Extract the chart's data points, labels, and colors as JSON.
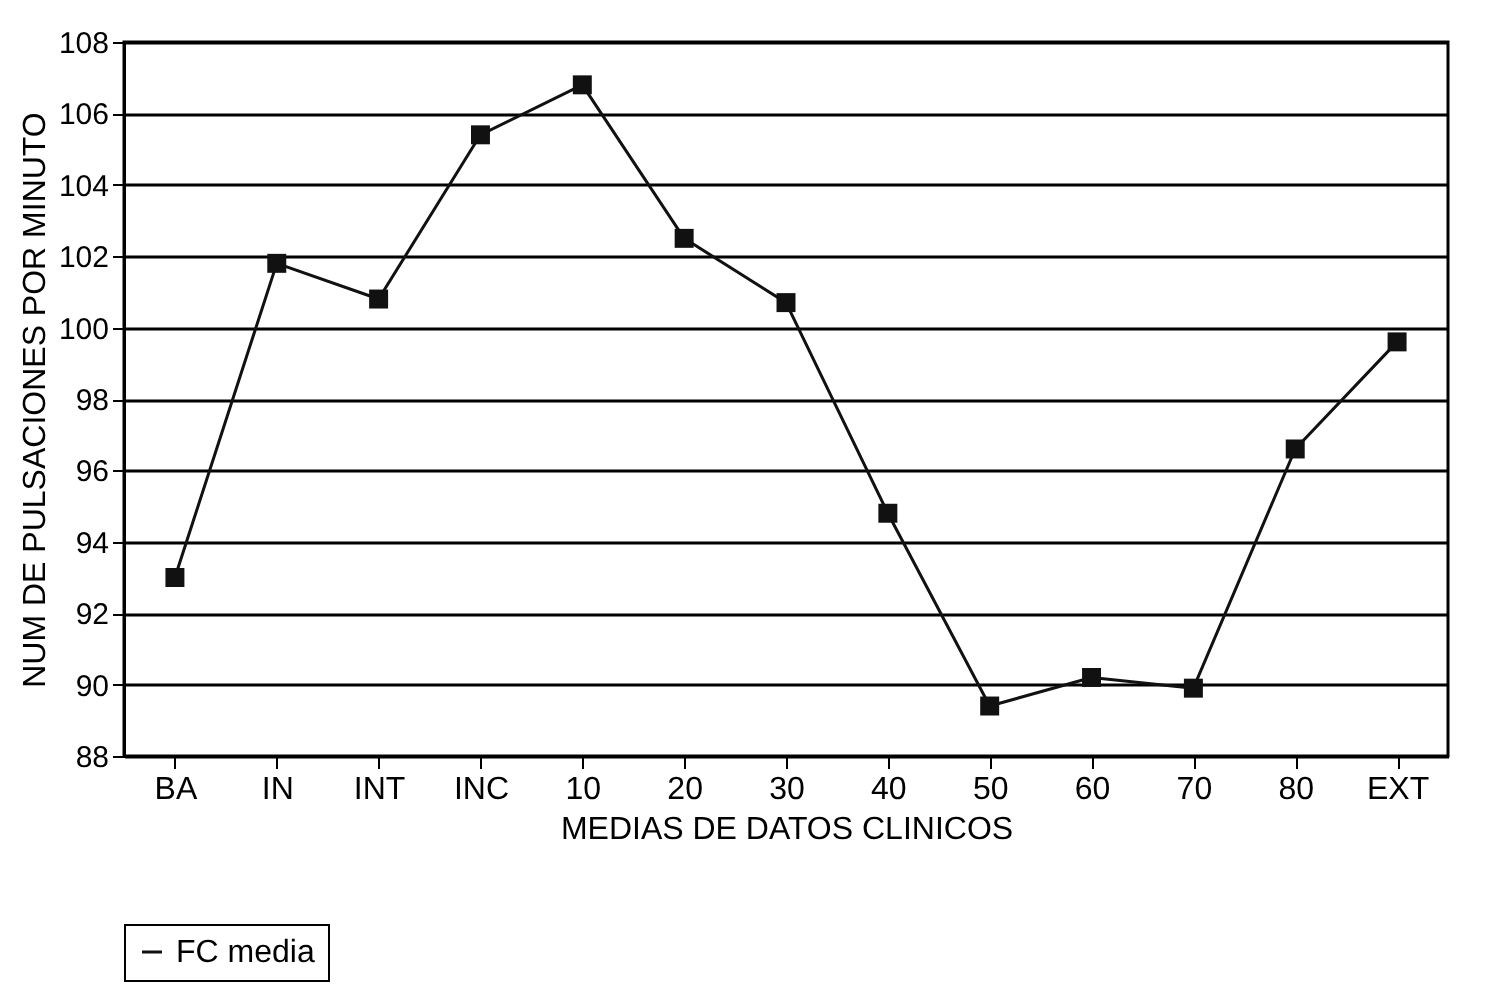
{
  "chart_data": {
    "type": "line",
    "xlabel": "MEDIAS DE DATOS CLINICOS",
    "ylabel": "NUM DE PULSACIONES POR MINUTO",
    "categories": [
      "BA",
      "IN",
      "INT",
      "INC",
      "10",
      "20",
      "30",
      "40",
      "50",
      "60",
      "70",
      "80",
      "EXT"
    ],
    "series": [
      {
        "name": "FC media",
        "color": "#111111",
        "values": [
          93.0,
          101.8,
          100.8,
          105.4,
          106.8,
          102.5,
          100.7,
          94.8,
          89.4,
          90.2,
          89.9,
          96.6,
          99.6
        ]
      }
    ],
    "ylim": [
      88,
      108
    ],
    "yticks": [
      88,
      90,
      92,
      94,
      96,
      98,
      100,
      102,
      104,
      106,
      108
    ],
    "grid": "y",
    "legend": "bottom",
    "marker": "square",
    "line_style": "solid"
  }
}
